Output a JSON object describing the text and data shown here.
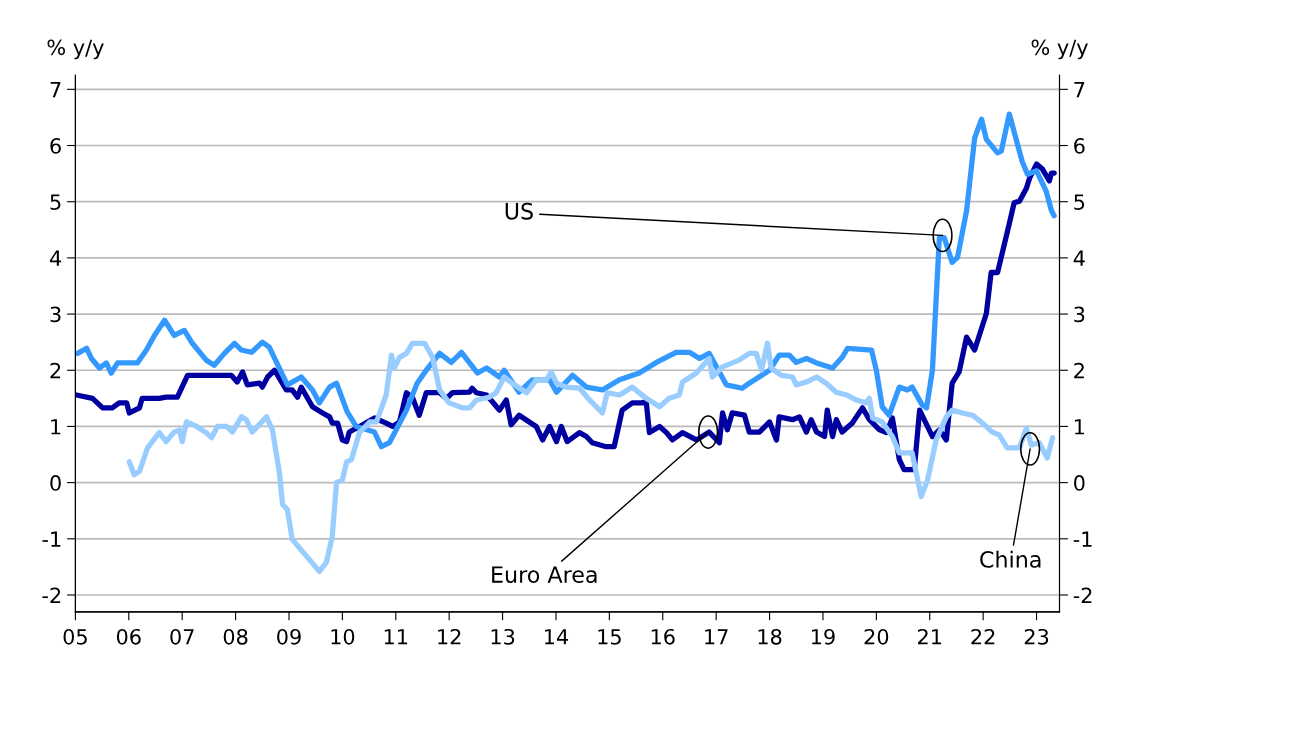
{
  "chart_data": {
    "type": "line",
    "ylabel": "% y/y",
    "y2label": "% y/y",
    "xlim": [
      2005,
      2023.43
    ],
    "ylim": [
      -2.3,
      7.25
    ],
    "y2lim": [
      -2.3,
      7.25
    ],
    "yticks": [
      -2,
      -1,
      0,
      1,
      2,
      3,
      4,
      5,
      6,
      7
    ],
    "y2ticks": [
      -2,
      -1,
      0,
      1,
      2,
      3,
      4,
      5,
      6,
      7
    ],
    "xticks": [
      {
        "value": 2005,
        "label": "05"
      },
      {
        "value": 2006,
        "label": "06"
      },
      {
        "value": 2007,
        "label": "07"
      },
      {
        "value": 2008,
        "label": "08"
      },
      {
        "value": 2009,
        "label": "09"
      },
      {
        "value": 2010,
        "label": "10"
      },
      {
        "value": 2011,
        "label": "11"
      },
      {
        "value": 2012,
        "label": "12"
      },
      {
        "value": 2013,
        "label": "13"
      },
      {
        "value": 2014,
        "label": "14"
      },
      {
        "value": 2015,
        "label": "15"
      },
      {
        "value": 2016,
        "label": "16"
      },
      {
        "value": 2017,
        "label": "17"
      },
      {
        "value": 2018,
        "label": "18"
      },
      {
        "value": 2019,
        "label": "19"
      },
      {
        "value": 2020,
        "label": "20"
      },
      {
        "value": 2021,
        "label": "21"
      },
      {
        "value": 2022,
        "label": "22"
      },
      {
        "value": 2023,
        "label": "23"
      }
    ],
    "grid": "y",
    "legend": false,
    "line_style": "solid",
    "marker": "none",
    "annotations": [
      {
        "text": "US",
        "x": 2021.24,
        "y": 4.4
      },
      {
        "text": "Euro Area",
        "x": 2016.85,
        "y": 0.9
      },
      {
        "text": "China",
        "x": 2022.88,
        "y": 0.6
      }
    ],
    "series": [
      {
        "color": "#0000a0",
        "x": [
          2005.02,
          2005.32,
          2005.51,
          2005.69,
          2005.82,
          2005.96,
          2006.01,
          2006.2,
          2006.25,
          2006.57,
          2006.7,
          2006.91,
          2007.1,
          2007.92,
          2008.03,
          2008.13,
          2008.22,
          2008.45,
          2008.5,
          2008.6,
          2008.73,
          2008.95,
          2009.06,
          2009.16,
          2009.23,
          2009.44,
          2009.63,
          2009.76,
          2009.81,
          2009.91,
          2010.0,
          2010.08,
          2010.13,
          2010.32,
          2010.6,
          2010.82,
          2010.94,
          2011.07,
          2011.2,
          2011.31,
          2011.44,
          2011.57,
          2011.82,
          2011.95,
          2012.06,
          2012.38,
          2012.43,
          2012.51,
          2012.7,
          2012.81,
          2012.94,
          2013.07,
          2013.16,
          2013.31,
          2013.5,
          2013.63,
          2013.75,
          2013.88,
          2014.01,
          2014.1,
          2014.21,
          2014.44,
          2014.57,
          2014.68,
          2014.94,
          2015.09,
          2015.24,
          2015.43,
          2015.6,
          2015.69,
          2015.75,
          2015.94,
          2016.07,
          2016.18,
          2016.37,
          2016.63,
          2016.87,
          2017.06,
          2017.12,
          2017.21,
          2017.3,
          2017.53,
          2017.62,
          2017.81,
          2018.0,
          2018.13,
          2018.18,
          2018.43,
          2018.56,
          2018.69,
          2018.78,
          2018.88,
          2019.03,
          2019.08,
          2019.18,
          2019.25,
          2019.36,
          2019.55,
          2019.74,
          2019.87,
          2020.06,
          2020.19,
          2020.3,
          2020.43,
          2020.52,
          2020.71,
          2020.81,
          2021.05,
          2021.18,
          2021.31,
          2021.42,
          2021.55,
          2021.69,
          2021.84,
          2022.06,
          2022.15,
          2022.27,
          2022.49,
          2022.58,
          2022.68,
          2022.81,
          2022.87,
          2023.0,
          2023.11,
          2023.24,
          2023.28,
          2023.33
        ],
        "values": [
          1.56,
          1.5,
          1.33,
          1.33,
          1.42,
          1.42,
          1.24,
          1.33,
          1.5,
          1.5,
          1.52,
          1.52,
          1.91,
          1.91,
          1.79,
          1.97,
          1.74,
          1.77,
          1.7,
          1.88,
          2.0,
          1.65,
          1.65,
          1.52,
          1.7,
          1.35,
          1.24,
          1.17,
          1.06,
          1.06,
          0.76,
          0.73,
          0.9,
          1.0,
          1.15,
          1.06,
          1.0,
          1.08,
          1.6,
          1.52,
          1.2,
          1.6,
          1.6,
          1.5,
          1.6,
          1.61,
          1.68,
          1.6,
          1.56,
          1.44,
          1.29,
          1.47,
          1.03,
          1.2,
          1.08,
          1.0,
          0.76,
          1.0,
          0.73,
          1.0,
          0.73,
          0.89,
          0.82,
          0.71,
          0.64,
          0.64,
          1.29,
          1.42,
          1.42,
          1.44,
          0.89,
          1.0,
          0.89,
          0.76,
          0.89,
          0.76,
          0.9,
          0.71,
          1.24,
          0.94,
          1.24,
          1.2,
          0.9,
          0.9,
          1.08,
          0.76,
          1.17,
          1.12,
          1.17,
          0.9,
          1.12,
          0.9,
          0.82,
          1.29,
          0.82,
          1.12,
          0.9,
          1.06,
          1.33,
          1.12,
          0.94,
          0.89,
          1.15,
          0.41,
          0.23,
          0.23,
          1.29,
          0.82,
          0.94,
          0.76,
          1.77,
          1.97,
          2.59,
          2.36,
          3.01,
          3.74,
          3.74,
          4.61,
          4.98,
          5.01,
          5.24,
          5.42,
          5.67,
          5.58,
          5.37,
          5.51,
          5.51
        ]
      },
      {
        "color": "#3399ff",
        "x": [
          2005.04,
          2005.21,
          2005.3,
          2005.45,
          2005.58,
          2005.67,
          2005.79,
          2006.16,
          2006.33,
          2006.48,
          2006.67,
          2006.85,
          2007.04,
          2007.19,
          2007.45,
          2007.6,
          2007.79,
          2007.98,
          2008.11,
          2008.3,
          2008.5,
          2008.63,
          2008.97,
          2009.23,
          2009.44,
          2009.57,
          2009.76,
          2009.89,
          2010.09,
          2010.26,
          2010.6,
          2010.73,
          2010.88,
          2011.2,
          2011.4,
          2011.57,
          2011.82,
          2012.04,
          2012.23,
          2012.53,
          2012.7,
          2012.94,
          2013.03,
          2013.31,
          2013.56,
          2013.88,
          2014.01,
          2014.31,
          2014.57,
          2014.87,
          2015.19,
          2015.56,
          2015.88,
          2016.25,
          2016.5,
          2016.69,
          2016.87,
          2017.19,
          2017.49,
          2017.62,
          2018.0,
          2018.18,
          2018.37,
          2018.5,
          2018.69,
          2018.88,
          2019.18,
          2019.36,
          2019.46,
          2019.91,
          2020.0,
          2020.11,
          2020.24,
          2020.43,
          2020.58,
          2020.67,
          2020.86,
          2020.94,
          2021.05,
          2021.18,
          2021.27,
          2021.42,
          2021.52,
          2021.69,
          2021.84,
          2021.97,
          2022.06,
          2022.27,
          2022.34,
          2022.49,
          2022.73,
          2022.83,
          2023.0,
          2023.18,
          2023.28,
          2023.33
        ],
        "values": [
          2.3,
          2.39,
          2.21,
          2.04,
          2.13,
          1.95,
          2.13,
          2.13,
          2.36,
          2.62,
          2.89,
          2.62,
          2.71,
          2.48,
          2.18,
          2.09,
          2.3,
          2.48,
          2.36,
          2.32,
          2.5,
          2.41,
          1.74,
          1.88,
          1.65,
          1.42,
          1.7,
          1.77,
          1.26,
          1.0,
          0.9,
          0.64,
          0.71,
          1.29,
          1.77,
          2.0,
          2.3,
          2.14,
          2.32,
          1.95,
          2.04,
          1.88,
          2.0,
          1.61,
          1.83,
          1.83,
          1.61,
          1.91,
          1.7,
          1.65,
          1.83,
          1.95,
          2.14,
          2.32,
          2.32,
          2.21,
          2.3,
          1.74,
          1.68,
          1.77,
          2.0,
          2.27,
          2.27,
          2.14,
          2.21,
          2.13,
          2.04,
          2.23,
          2.39,
          2.36,
          2.0,
          1.35,
          1.2,
          1.7,
          1.65,
          1.7,
          1.38,
          1.33,
          2.0,
          4.36,
          4.36,
          3.92,
          4.01,
          4.84,
          6.13,
          6.47,
          6.11,
          5.87,
          5.9,
          6.56,
          5.72,
          5.49,
          5.55,
          5.19,
          4.84,
          4.75
        ]
      },
      {
        "color": "#99ccff",
        "x": [
          2006.01,
          2006.1,
          2006.2,
          2006.35,
          2006.57,
          2006.7,
          2006.85,
          2006.95,
          2007.0,
          2007.08,
          2007.27,
          2007.45,
          2007.55,
          2007.66,
          2007.83,
          2007.94,
          2008.11,
          2008.2,
          2008.31,
          2008.58,
          2008.69,
          2008.82,
          2008.88,
          2008.97,
          2009.06,
          2009.57,
          2009.7,
          2009.81,
          2009.89,
          2010.0,
          2010.08,
          2010.17,
          2010.32,
          2010.51,
          2010.64,
          2010.82,
          2010.92,
          2010.97,
          2011.07,
          2011.2,
          2011.31,
          2011.54,
          2011.69,
          2011.82,
          2012.0,
          2012.25,
          2012.38,
          2012.51,
          2012.75,
          2012.88,
          2013.03,
          2013.18,
          2013.45,
          2013.63,
          2013.82,
          2013.91,
          2014.01,
          2014.19,
          2014.44,
          2014.63,
          2014.87,
          2014.96,
          2015.19,
          2015.43,
          2015.69,
          2015.94,
          2016.12,
          2016.31,
          2016.37,
          2016.63,
          2016.87,
          2016.93,
          2017.12,
          2017.43,
          2017.62,
          2017.75,
          2017.85,
          2017.96,
          2018.03,
          2018.22,
          2018.43,
          2018.5,
          2018.69,
          2018.88,
          2019.06,
          2019.25,
          2019.44,
          2019.63,
          2019.81,
          2019.87,
          2019.93,
          2020.11,
          2020.3,
          2020.43,
          2020.67,
          2020.84,
          2020.96,
          2021.12,
          2021.31,
          2021.42,
          2021.61,
          2021.8,
          2021.99,
          2022.17,
          2022.3,
          2022.45,
          2022.68,
          2022.81,
          2022.9,
          2023.05,
          2023.2,
          2023.3
        ],
        "values": [
          0.37,
          0.14,
          0.2,
          0.62,
          0.89,
          0.73,
          0.9,
          0.94,
          0.73,
          1.08,
          1.0,
          0.89,
          0.8,
          1.0,
          1.0,
          0.9,
          1.17,
          1.12,
          0.9,
          1.17,
          0.94,
          0.18,
          -0.39,
          -0.48,
          -1.01,
          -1.58,
          -1.42,
          -0.96,
          0.0,
          0.05,
          0.37,
          0.41,
          0.89,
          1.08,
          1.08,
          1.56,
          2.27,
          2.04,
          2.23,
          2.3,
          2.48,
          2.48,
          2.23,
          1.65,
          1.42,
          1.33,
          1.33,
          1.47,
          1.52,
          1.6,
          1.88,
          1.77,
          1.6,
          1.83,
          1.83,
          1.97,
          1.77,
          1.7,
          1.68,
          1.47,
          1.24,
          1.6,
          1.56,
          1.7,
          1.5,
          1.35,
          1.5,
          1.56,
          1.79,
          1.95,
          2.21,
          1.88,
          2.06,
          2.18,
          2.3,
          2.3,
          2.0,
          2.48,
          2.04,
          1.91,
          1.88,
          1.74,
          1.79,
          1.88,
          1.77,
          1.61,
          1.56,
          1.47,
          1.42,
          1.5,
          1.15,
          1.08,
          0.82,
          0.53,
          0.53,
          -0.25,
          0.05,
          0.76,
          1.17,
          1.29,
          1.24,
          1.2,
          1.06,
          0.9,
          0.85,
          0.62,
          0.62,
          0.97,
          0.67,
          0.71,
          0.44,
          0.8
        ]
      }
    ]
  }
}
